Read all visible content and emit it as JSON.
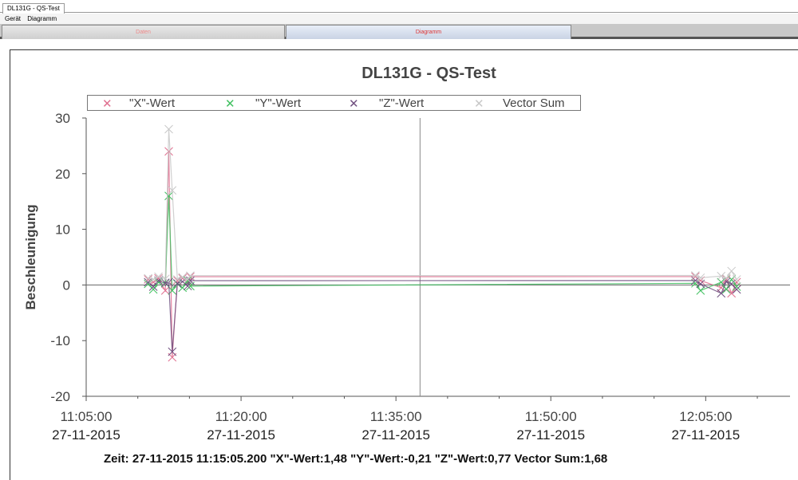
{
  "window": {
    "doc_tab": "DL131G - QS-Test"
  },
  "menu": [
    "Gerät",
    "Diagramm"
  ],
  "view_tabs": [
    {
      "label": "Daten",
      "active": false
    },
    {
      "label": "Diagramm",
      "active": true
    }
  ],
  "chart_data": {
    "type": "line",
    "title": "DL131G - QS-Test",
    "ylabel": "Beschleunigung",
    "xlabel": "",
    "ylim": [
      -20,
      30
    ],
    "yticks": [
      30,
      20,
      10,
      0,
      -10,
      -20
    ],
    "xlim": [
      "11:05:00",
      "12:13:10"
    ],
    "xticks": [
      {
        "time": "11:05:00",
        "date": "27-11-2015"
      },
      {
        "time": "11:20:00",
        "date": "27-11-2015"
      },
      {
        "time": "11:35:00",
        "date": "27-11-2015"
      },
      {
        "time": "11:50:00",
        "date": "27-11-2015"
      },
      {
        "time": "12:05:00",
        "date": "27-11-2015"
      }
    ],
    "cursor_time": "11:37:20",
    "markers": "x",
    "legend_position": "top",
    "x": [
      "11:11:00",
      "11:11:30",
      "11:12:00",
      "11:12:40",
      "11:13:00",
      "11:13:20",
      "11:13:50",
      "11:14:20",
      "11:14:50",
      "11:15:05",
      "12:04:00",
      "12:04:30",
      "12:06:30",
      "12:07:00",
      "12:07:30",
      "12:08:00"
    ],
    "series": [
      {
        "name": "\"X\"-Wert",
        "color": "#e07090",
        "values": [
          1.0,
          0.5,
          1.2,
          -1.0,
          24.0,
          -13.0,
          0.8,
          1.2,
          0.5,
          1.48,
          1.5,
          0.8,
          -0.5,
          1.0,
          -1.5,
          0.5
        ]
      },
      {
        "name": "\"Y\"-Wert",
        "color": "#40c060",
        "values": [
          0.2,
          -0.8,
          0.5,
          0.3,
          16.0,
          -1.0,
          0.2,
          -0.5,
          0.8,
          -0.21,
          0.3,
          -1.0,
          0.5,
          -0.8,
          1.0,
          -0.3
        ]
      },
      {
        "name": "\"Z\"-Wert",
        "color": "#705080",
        "values": [
          0.5,
          -0.3,
          0.8,
          0.4,
          0.5,
          -12.0,
          0.3,
          0.6,
          -0.2,
          0.77,
          0.8,
          0.2,
          -1.5,
          0.6,
          0.2,
          -0.8
        ]
      },
      {
        "name": "Vector Sum",
        "color": "#c8c8c8",
        "values": [
          1.2,
          1.0,
          1.5,
          1.1,
          28.0,
          17.0,
          1.0,
          1.4,
          1.0,
          1.68,
          1.7,
          1.3,
          1.6,
          1.2,
          2.5,
          1.0
        ]
      }
    ]
  },
  "status": "Zeit: 27-11-2015 11:15:05.200 \"X\"-Wert:1,48 \"Y\"-Wert:-0,21 \"Z\"-Wert:0,77 Vector Sum:1,68"
}
